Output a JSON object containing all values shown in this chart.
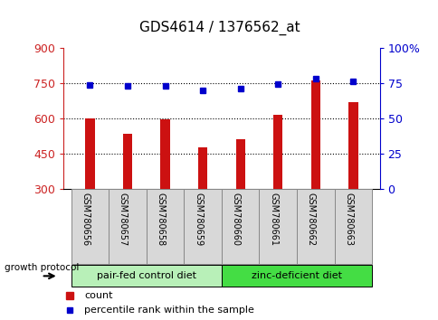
{
  "title": "GDS4614 / 1376562_at",
  "samples": [
    "GSM780656",
    "GSM780657",
    "GSM780658",
    "GSM780659",
    "GSM780660",
    "GSM780661",
    "GSM780662",
    "GSM780663"
  ],
  "counts": [
    600,
    535,
    595,
    475,
    510,
    615,
    760,
    670
  ],
  "percentile_ranks": [
    74,
    73,
    73,
    70,
    71,
    74.5,
    78,
    76
  ],
  "ylim_left": [
    300,
    900
  ],
  "ylim_right": [
    0,
    100
  ],
  "yticks_left": [
    300,
    450,
    600,
    750,
    900
  ],
  "yticks_right": [
    0,
    25,
    50,
    75,
    100
  ],
  "ytick_labels_right": [
    "0",
    "25",
    "50",
    "75",
    "100%"
  ],
  "groups": [
    {
      "label": "pair-fed control diet",
      "start": 0,
      "end": 4,
      "color": "#b8f0b8"
    },
    {
      "label": "zinc-deficient diet",
      "start": 4,
      "end": 8,
      "color": "#44dd44"
    }
  ],
  "bar_color": "#cc1111",
  "dot_color": "#0000cc",
  "label_bar": "count",
  "label_dot": "percentile rank within the sample",
  "growth_protocol_label": "growth protocol",
  "tick_color_left": "#cc2222",
  "tick_color_right": "#0000cc",
  "grid_yticks": [
    450,
    600,
    750
  ],
  "sample_bg_color": "#d8d8d8",
  "bar_width": 0.25
}
